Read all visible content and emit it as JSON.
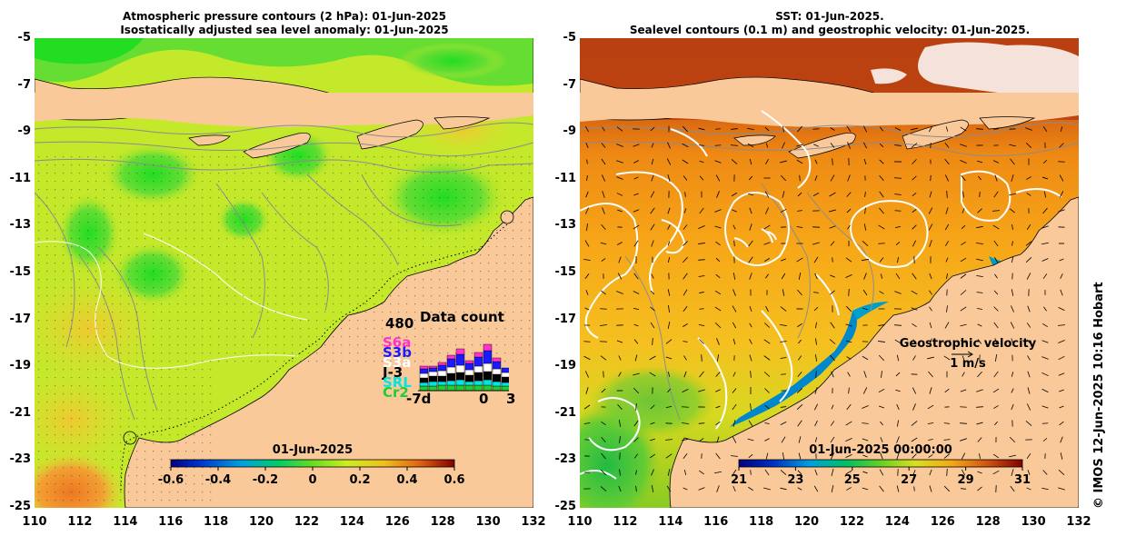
{
  "left_panel": {
    "title_line1": "Atmospheric pressure contours (2 hPa): 01-Jun-2025",
    "title_line2": "Isostatically adjusted sea level anomaly: 01-Jun-2025",
    "y_ticks": [
      "-5",
      "-7",
      "-9",
      "-11",
      "-13",
      "-15",
      "-17",
      "-19",
      "-21",
      "-23",
      "-25"
    ],
    "x_ticks": [
      "110",
      "112",
      "114",
      "116",
      "118",
      "120",
      "122",
      "124",
      "126",
      "128",
      "130",
      "132"
    ],
    "colorbar": {
      "title": "01-Jun-2025",
      "labels": [
        "-0.6",
        "-0.4",
        "-0.2",
        "0",
        "0.2",
        "0.4",
        "0.6"
      ],
      "range": [
        -0.6,
        0.6
      ]
    },
    "data_count": {
      "title": "Data count",
      "ymax_label": "480",
      "satellites": [
        {
          "name": "S6a",
          "color": "#ff33cc"
        },
        {
          "name": "S3b",
          "color": "#1a1aff"
        },
        {
          "name": "S3a",
          "color": "#ffffff"
        },
        {
          "name": "J-3",
          "color": "#000000"
        },
        {
          "name": "SRL",
          "color": "#00e5e5"
        },
        {
          "name": "Cr2",
          "color": "#22cc33"
        }
      ],
      "x_labels": [
        "-7d",
        "0",
        "3"
      ]
    }
  },
  "right_panel": {
    "title_line1": "SST: 01-Jun-2025.",
    "title_line2": "Sealevel contours (0.1 m) and geostrophic velocity: 01-Jun-2025.",
    "y_ticks": [
      "-5",
      "-7",
      "-9",
      "-11",
      "-13",
      "-15",
      "-17",
      "-19",
      "-21",
      "-23",
      "-25"
    ],
    "x_ticks": [
      "110",
      "112",
      "114",
      "116",
      "118",
      "120",
      "122",
      "124",
      "126",
      "128",
      "130",
      "132"
    ],
    "colorbar": {
      "title": "01-Jun-2025 00:00:00",
      "labels": [
        "21",
        "23",
        "25",
        "27",
        "29",
        "31"
      ],
      "range": [
        21,
        31
      ]
    },
    "velocity_legend": {
      "title": "Geostrophic velocity",
      "scale": "1 m/s"
    }
  },
  "copyright": "© IMOS 12-Jun-2025 10:16 Hobart",
  "colors": {
    "land": "#f9c99a",
    "sla_base": "#c4e82a",
    "sst_base": "#f7a818",
    "coast": "#000000"
  }
}
